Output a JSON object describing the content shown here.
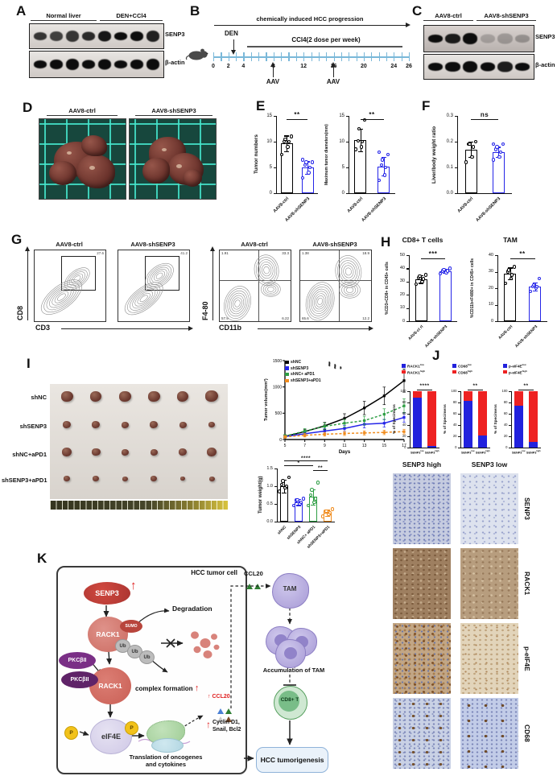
{
  "figure": {
    "panel_labels": {
      "A": "A",
      "B": "B",
      "C": "C",
      "D": "D",
      "E": "E",
      "F": "F",
      "G": "G",
      "H": "H",
      "I": "I",
      "J": "J",
      "K": "K"
    }
  },
  "colors": {
    "ctrl_black": "#000000",
    "sh_blue": "#2525e8",
    "apd1_green": "#2e9e44",
    "apd1_orange": "#f08c1e",
    "stack_blue": "#2222dd",
    "stack_red": "#ee2222",
    "timeline_blue": "#7ab8d9",
    "senp3_red": "#c0392b"
  },
  "panelA": {
    "groups": [
      "Normal liver",
      "DEN+CCl4"
    ],
    "blots": [
      {
        "label": "SENP3",
        "lanes": [
          0.8,
          0.75,
          0.8,
          0.85,
          0.95,
          1,
          1,
          0.9
        ]
      },
      {
        "label": "β-actin",
        "lanes": [
          1,
          1,
          1,
          1,
          1,
          1,
          1,
          1
        ]
      }
    ]
  },
  "panelB": {
    "title": "chemically induced HCC progression",
    "den_label": "DEN",
    "ccl4_label": "CCl4(2 dose per week)",
    "week_ticks": [
      "0",
      "2",
      "4",
      "8",
      "12",
      "16",
      "20",
      "24",
      "26"
    ],
    "aav_label": "AAV"
  },
  "panelC": {
    "groups": [
      "AAV8-ctrl",
      "AAV8-shSENP3"
    ],
    "blots": [
      {
        "label": "SENP3",
        "lanes": [
          1,
          0.92,
          1,
          0.2,
          0.24,
          0.28
        ]
      },
      {
        "label": "β-actin",
        "lanes": [
          1,
          1,
          1,
          1,
          0.92,
          1
        ]
      }
    ]
  },
  "panelD": {
    "groups": [
      "AAV8-ctrl",
      "AAV8-shSENP3"
    ]
  },
  "panelG": {
    "cd8_x": "CD3",
    "cd8_y": "CD8",
    "tam_x": "CD11b",
    "tam_y": "F4-80",
    "cd8_plots": [
      {
        "title": "AAV8-ctrl",
        "gate_value": "27.6"
      },
      {
        "title": "AAV8-shSENP3",
        "gate_value": "41.2"
      }
    ],
    "tam_plots": [
      {
        "title": "AAV8-ctrl",
        "q_tl": "1.91",
        "q_tr": "33.3",
        "q_bl": "57.9",
        "q_br": "6.22"
      },
      {
        "title": "AAV8-shSENP3",
        "q_tl": "1.38",
        "q_tr": "18.9",
        "q_bl": "65.6",
        "q_br": "12.2"
      }
    ]
  },
  "panelI": {
    "row_labels": [
      "shNC",
      "shSENP3",
      "shNC+aPD1",
      "shSENP3+aPD1"
    ]
  },
  "panelJ": {
    "ihc_col_headers": [
      "SENP3 high",
      "SENP3 low"
    ],
    "ihc_row_labels": [
      "SENP3",
      "RACK1",
      "p-eIF4E",
      "CD68"
    ]
  },
  "panelK": {
    "cell_label": "HCC tumor cell",
    "senp3": "SENP3",
    "up": "↑",
    "rack1": "RACK1",
    "sumo": "SUMO",
    "ub": "Ub",
    "pkc": "PKCβII",
    "complex": "complex formation",
    "eif4e": "eIF4E",
    "p": "P",
    "degradation": "Degradation",
    "translation": "Translation of oncogenes and cytokines",
    "ccl20_inner": "CCL20",
    "cyclin": "Cyclin D1,",
    "snail": "Snail, Bcl2",
    "ccl20_outer": "CCL20",
    "tam": "TAM",
    "accumulation": "Accumulation of TAM",
    "cd8t": "CD8+ T",
    "hcc": "HCC tumorigenesis"
  },
  "chart_data": [
    {
      "id": "tumor_numbers",
      "type": "bar",
      "categories": [
        "AAV8-ctrl",
        "AAV8-shSENP3"
      ],
      "values": [
        9.7,
        5.0
      ],
      "points": [
        [
          7.5,
          9,
          10,
          10,
          10.5,
          11
        ],
        [
          3,
          4,
          5,
          5.5,
          6,
          6,
          6.5
        ]
      ],
      "errors": [
        1.5,
        1.2
      ],
      "bar_colors": [
        "#000000",
        "#2525e8"
      ],
      "ylabel": "Tumor numbers",
      "ylim": [
        0,
        15
      ],
      "yticks": [
        "0",
        "5",
        "10",
        "15"
      ],
      "sig": "**"
    },
    {
      "id": "max_tumor_diameters",
      "type": "bar",
      "categories": [
        "AAV8-ctrl",
        "AAV8-shSENP3"
      ],
      "values": [
        10.3,
        5.2
      ],
      "points": [
        [
          8.5,
          9,
          10,
          10.2,
          12.5,
          14.2
        ],
        [
          2.5,
          3.5,
          5,
          5.5,
          6.5,
          7.5,
          8
        ]
      ],
      "errors": [
        2.2,
        1.8
      ],
      "bar_colors": [
        "#000000",
        "#2525e8"
      ],
      "ylabel": "Maximum tumor diameters(mm)",
      "ylim": [
        0,
        15
      ],
      "yticks": [
        "0",
        "5",
        "10",
        "15"
      ],
      "sig": "**"
    },
    {
      "id": "liver_body_ratio",
      "type": "bar",
      "categories": [
        "AAV8-ctrl",
        "AAV8-shSENP3"
      ],
      "values": [
        0.17,
        0.16
      ],
      "points": [
        [
          0.12,
          0.14,
          0.18,
          0.19,
          0.19,
          0.2
        ],
        [
          0.13,
          0.14,
          0.16,
          0.17,
          0.18,
          0.19,
          0.19
        ]
      ],
      "errors": [
        0.03,
        0.02
      ],
      "bar_colors": [
        "#000000",
        "#2525e8"
      ],
      "ylabel": "Liver/body weight ratio",
      "ylim": [
        0,
        0.3
      ],
      "yticks": [
        "0.0",
        "0.1",
        "0.2",
        "0.3"
      ],
      "sig": "ns"
    },
    {
      "id": "cd8_t_cells",
      "type": "bar",
      "title": "CD8+ T cells",
      "categories": [
        "AAV8-ct rl",
        "AAV8-shSENP3"
      ],
      "values": [
        32,
        38
      ],
      "points": [
        [
          28,
          30,
          32,
          33,
          34,
          35
        ],
        [
          36,
          37,
          38,
          38,
          39,
          40
        ]
      ],
      "errors": [
        3,
        1.5
      ],
      "bar_colors": [
        "#000000",
        "#2525e8"
      ],
      "ylabel": "%CD3+CD8+ in CD45+ cells",
      "ylim": [
        0,
        50
      ],
      "yticks": [
        "0",
        "10",
        "20",
        "30",
        "40",
        "50"
      ],
      "sig": "***"
    },
    {
      "id": "tam",
      "type": "bar",
      "title": "TAM",
      "categories": [
        "AAV8-ctrl",
        "AAV8-shSENP3"
      ],
      "values": [
        29,
        21
      ],
      "points": [
        [
          23,
          26,
          28,
          30,
          31,
          33
        ],
        [
          18,
          20,
          21,
          21,
          22,
          26
        ]
      ],
      "errors": [
        3.5,
        2.5
      ],
      "bar_colors": [
        "#000000",
        "#2525e8"
      ],
      "ylabel": "%CD11b+F4/80+ in CD45+ cells",
      "ylim": [
        0,
        40
      ],
      "yticks": [
        "0",
        "10",
        "20",
        "30",
        "40"
      ],
      "sig": "**"
    },
    {
      "id": "tumor_volume",
      "type": "line",
      "x": [
        5,
        7,
        9,
        11,
        13,
        15,
        17
      ],
      "series": [
        {
          "name": "shNC",
          "color": "#000000",
          "dash": false,
          "values": [
            60,
            150,
            260,
            400,
            600,
            830,
            1120
          ]
        },
        {
          "name": "shSENP3",
          "color": "#2525e8",
          "dash": false,
          "values": [
            55,
            110,
            160,
            210,
            290,
            310,
            420
          ]
        },
        {
          "name": "shNC+ aPD1",
          "color": "#2e9e44",
          "dash": true,
          "values": [
            65,
            160,
            250,
            310,
            360,
            480,
            640
          ]
        },
        {
          "name": "shSENP3+aPD1",
          "color": "#f08c1e",
          "dash": true,
          "values": [
            50,
            80,
            100,
            115,
            125,
            135,
            150
          ]
        }
      ],
      "ylabel": "Tumor volume(mm³)",
      "xlabel": "Days",
      "ylim": [
        0,
        1500
      ],
      "yticks": [
        "0",
        "500",
        "1000",
        "1500"
      ],
      "legend_sig": [
        "****",
        "****",
        "**"
      ]
    },
    {
      "id": "tumor_weight",
      "type": "bar",
      "categories": [
        "shNC",
        "shSENP3",
        "shNC+ aPD1",
        "shSENP3+aPD1"
      ],
      "values": [
        1.0,
        0.55,
        0.7,
        0.25
      ],
      "points": [
        [
          0.85,
          0.95,
          1.0,
          1.05,
          1.15,
          1.25
        ],
        [
          0.45,
          0.5,
          0.55,
          0.6,
          0.62,
          0.65
        ],
        [
          0.45,
          0.55,
          0.65,
          0.75,
          0.9,
          1.1
        ],
        [
          0.15,
          0.2,
          0.25,
          0.28,
          0.3,
          0.35
        ]
      ],
      "errors": [
        0.18,
        0.08,
        0.22,
        0.08
      ],
      "bar_colors": [
        "#000000",
        "#2525e8",
        "#2e9e44",
        "#f08c1e"
      ],
      "ylabel": "Tumor weight(g)",
      "ylim": [
        0,
        1.5
      ],
      "yticks": [
        "0.0",
        "0.5",
        "1.0",
        "1.5"
      ],
      "sig_pairs": [
        [
          0,
          3,
          "****"
        ],
        [
          0,
          2,
          "*"
        ],
        [
          2,
          3,
          "**"
        ]
      ]
    },
    {
      "id": "rack1_specimens",
      "type": "stacked_bar",
      "categories": [
        {
          "base": "SENP3",
          "sup": "low"
        },
        {
          "base": "SENP3",
          "sup": "high"
        }
      ],
      "series": [
        {
          "name_base": "RACK1",
          "name_sup": "low",
          "color": "#2222dd",
          "values": [
            88,
            3
          ]
        },
        {
          "name_base": "RACK1",
          "name_sup": "high",
          "color": "#ee2222",
          "values": [
            12,
            97
          ]
        }
      ],
      "ylabel": "% of Specimens",
      "ylim": [
        0,
        100
      ],
      "yticks": [
        "0",
        "20",
        "40",
        "60",
        "80",
        "100"
      ],
      "sig": "****"
    },
    {
      "id": "cd68_specimens",
      "type": "stacked_bar",
      "categories": [
        {
          "base": "SENP3",
          "sup": "low"
        },
        {
          "base": "SENP3",
          "sup": "high"
        }
      ],
      "series": [
        {
          "name_base": "CD68",
          "name_sup": "low",
          "color": "#2222dd",
          "values": [
            83,
            22
          ]
        },
        {
          "name_base": "CD68",
          "name_sup": "high",
          "color": "#ee2222",
          "values": [
            17,
            78
          ]
        }
      ],
      "ylabel": "% of Specimens",
      "ylim": [
        0,
        100
      ],
      "yticks": [
        "0",
        "20",
        "40",
        "60",
        "80",
        "100"
      ],
      "sig": "**"
    },
    {
      "id": "peif4e_specimens",
      "type": "stacked_bar",
      "categories": [
        {
          "base": "SENP3",
          "sup": "low"
        },
        {
          "base": "SENP3",
          "sup": "high"
        }
      ],
      "series": [
        {
          "name_base": "p-eIF4E",
          "name_sup": "low",
          "color": "#2222dd",
          "values": [
            75,
            10
          ]
        },
        {
          "name_base": "p-eIF4E",
          "name_sup": "high",
          "color": "#ee2222",
          "values": [
            25,
            90
          ]
        }
      ],
      "ylabel": "% of Specimens",
      "ylim": [
        0,
        100
      ],
      "yticks": [
        "0",
        "20",
        "40",
        "60",
        "80",
        "100"
      ],
      "sig": "**"
    }
  ]
}
